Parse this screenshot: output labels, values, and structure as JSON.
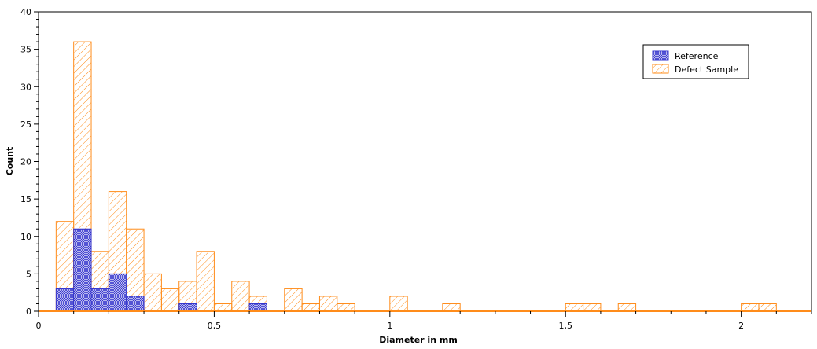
{
  "chart_data": {
    "type": "bar",
    "title": "",
    "xlabel": "Diameter in mm",
    "ylabel": "Count",
    "xlim": [
      0,
      2.2
    ],
    "ylim": [
      0,
      40
    ],
    "bin_width": 0.05,
    "x_ticks": [
      0,
      0.5,
      1,
      1.5,
      2
    ],
    "x_tick_labels": [
      "0",
      "0,5",
      "1",
      "1,5",
      "2"
    ],
    "y_ticks": [
      0,
      5,
      10,
      15,
      20,
      25,
      30,
      35,
      40
    ],
    "y_tick_labels": [
      "0",
      "5",
      "10",
      "15",
      "20",
      "25",
      "30",
      "35",
      "40"
    ],
    "legend_position": "top-right",
    "grid": false,
    "series": [
      {
        "name": "Reference",
        "color": "#3333cc",
        "pattern": "crosshatch",
        "bin_starts": [
          0.05,
          0.1,
          0.15,
          0.2,
          0.25,
          0.4,
          0.6
        ],
        "values": [
          3,
          11,
          3,
          5,
          2,
          1,
          1
        ]
      },
      {
        "name": "Defect Sample",
        "color": "#ff8c1a",
        "pattern": "diagonal",
        "bin_starts": [
          0.05,
          0.1,
          0.15,
          0.2,
          0.25,
          0.3,
          0.35,
          0.4,
          0.45,
          0.5,
          0.55,
          0.6,
          0.7,
          0.75,
          0.8,
          0.85,
          1.0,
          1.15,
          1.5,
          1.55,
          1.65,
          2.0,
          2.05
        ],
        "values": [
          12,
          36,
          8,
          16,
          11,
          5,
          3,
          4,
          8,
          1,
          4,
          2,
          3,
          1,
          2,
          1,
          2,
          1,
          1,
          1,
          1,
          1,
          1
        ]
      }
    ]
  }
}
